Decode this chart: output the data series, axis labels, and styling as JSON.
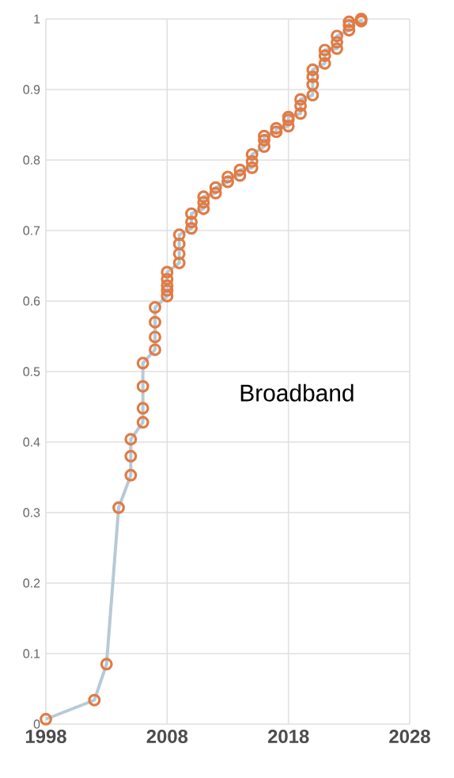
{
  "chart_data": {
    "type": "line",
    "annotations": [
      "Broadband"
    ],
    "xlim": [
      1998,
      2028
    ],
    "xticks": [
      1998,
      2008,
      2018,
      2028
    ],
    "ylim": [
      0,
      1
    ],
    "yticks": [
      0,
      0.1,
      0.2,
      0.3,
      0.4,
      0.5,
      0.6,
      0.7,
      0.8,
      0.9,
      1
    ],
    "grid": true,
    "marker": "circle",
    "line_style": "solid",
    "series": [
      {
        "color": "#b7c9d6",
        "x": [
          1998,
          2002,
          2003,
          2004,
          2005,
          2005,
          2005,
          2006,
          2006,
          2006,
          2006,
          2007,
          2007,
          2007,
          2007,
          2008,
          2008,
          2008,
          2008,
          2008,
          2009,
          2009,
          2009,
          2009,
          2010,
          2010,
          2010,
          2011,
          2011,
          2011,
          2012,
          2012,
          2013,
          2013,
          2014,
          2014,
          2015,
          2015,
          2015,
          2016,
          2016,
          2016,
          2017,
          2017,
          2018,
          2018,
          2018,
          2019,
          2019,
          2019,
          2020,
          2020,
          2020,
          2020,
          2021,
          2021,
          2021,
          2022,
          2022,
          2022,
          2023,
          2023,
          2023,
          2024,
          2024
        ],
        "values": [
          0.007,
          0.034,
          0.085,
          0.307,
          0.353,
          0.38,
          0.404,
          0.428,
          0.448,
          0.479,
          0.512,
          0.531,
          0.549,
          0.57,
          0.591,
          0.607,
          0.615,
          0.622,
          0.631,
          0.641,
          0.654,
          0.667,
          0.681,
          0.694,
          0.703,
          0.712,
          0.724,
          0.731,
          0.74,
          0.748,
          0.753,
          0.761,
          0.769,
          0.776,
          0.778,
          0.786,
          0.789,
          0.798,
          0.808,
          0.819,
          0.828,
          0.834,
          0.84,
          0.845,
          0.848,
          0.857,
          0.861,
          0.866,
          0.877,
          0.886,
          0.892,
          0.907,
          0.918,
          0.928,
          0.937,
          0.948,
          0.956,
          0.958,
          0.967,
          0.976,
          0.984,
          0.991,
          0.996,
          0.997,
          1.0
        ]
      }
    ]
  }
}
